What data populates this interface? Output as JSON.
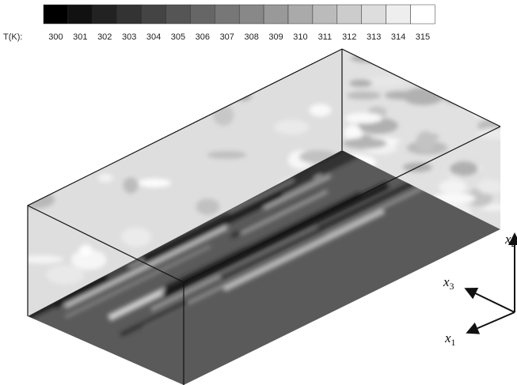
{
  "colorbar": {
    "label": "T(K):",
    "ticks": [
      300,
      301,
      302,
      303,
      304,
      305,
      306,
      307,
      308,
      309,
      310,
      311,
      312,
      313,
      314,
      315
    ]
  },
  "axes": [
    {
      "base": "x",
      "sub": "2"
    },
    {
      "base": "x",
      "sub": "3"
    },
    {
      "base": "x",
      "sub": "1"
    }
  ]
}
